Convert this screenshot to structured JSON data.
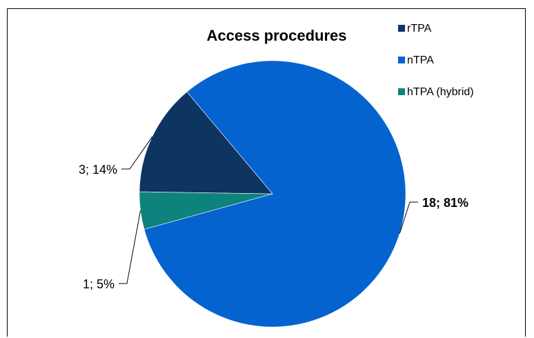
{
  "chart_data": {
    "type": "pie",
    "title": "Access procedures",
    "categories": [
      "rTPA",
      "nTPA",
      "hTPA (hybrid)"
    ],
    "values": [
      3,
      18,
      1
    ],
    "percent_labels": [
      "14%",
      "81%",
      "5%"
    ],
    "data_labels": [
      "3; 14%",
      "18; 81%",
      "1; 5%"
    ],
    "colors": [
      "#0e3462",
      "#0563d0",
      "#0e837d"
    ],
    "legend_position": "top-right",
    "bold_label_index": 1
  }
}
